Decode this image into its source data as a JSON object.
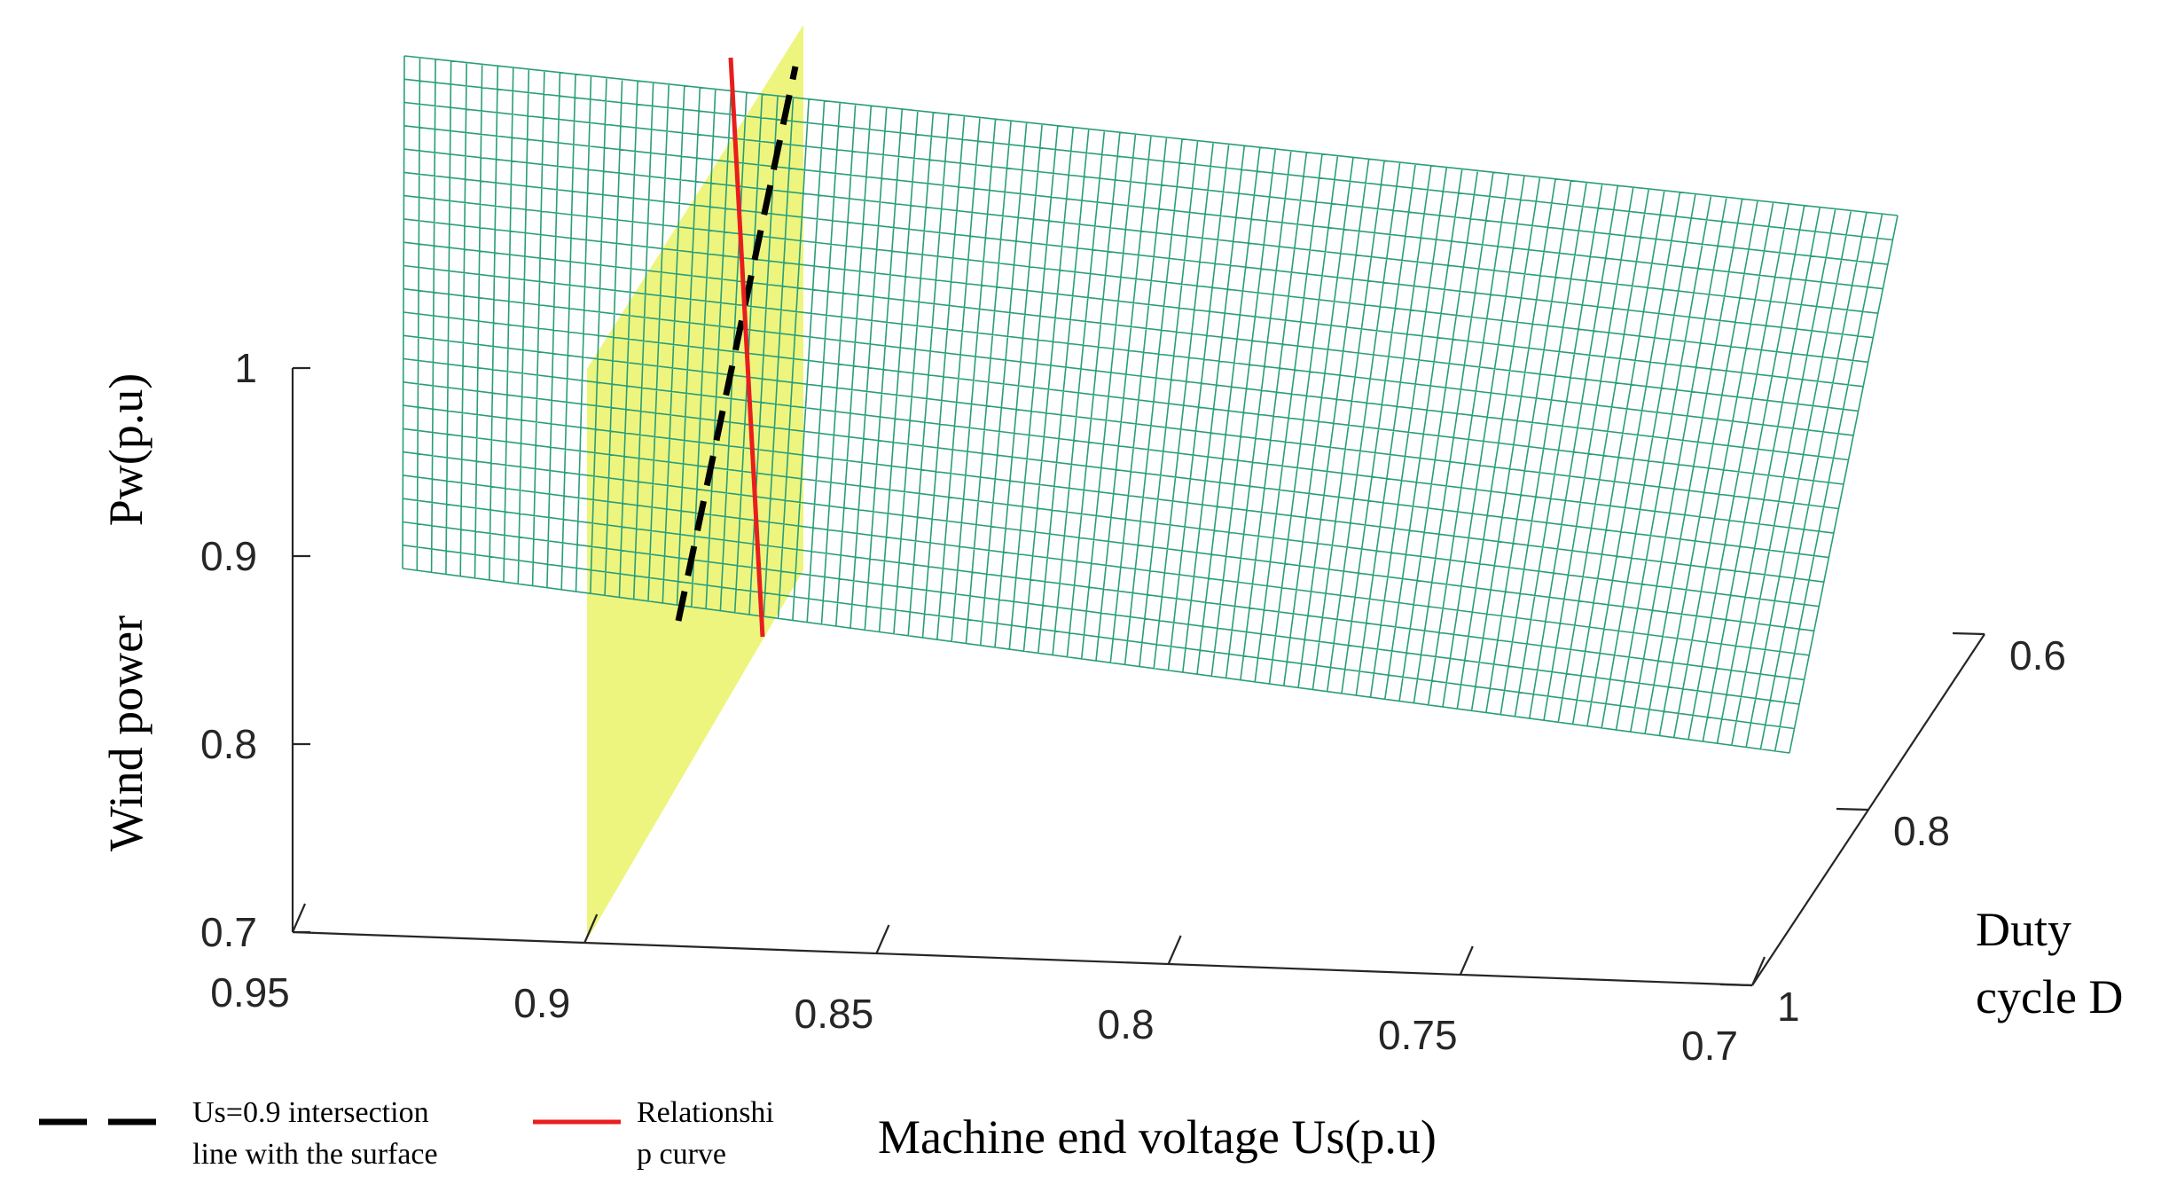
{
  "chart_data": {
    "type": "surface3d",
    "title": "",
    "xlabel": "Machine end voltage Us(p.u)",
    "ylabel_lines": [
      "Duty",
      "cycle D"
    ],
    "zlabel_lines": [
      "Wind power",
      "Pw(p.u)"
    ],
    "x_ticks": [
      "0.95",
      "0.9",
      "0.85",
      "0.8",
      "0.75",
      "0.7"
    ],
    "y_ticks": [
      "0.6",
      "0.8",
      "1"
    ],
    "z_ticks": [
      "1",
      "0.9",
      "0.8",
      "0.7"
    ],
    "xlim": [
      0.95,
      0.7
    ],
    "ylim": [
      0.6,
      1.0
    ],
    "zlim": [
      0.7,
      1.0
    ],
    "surface": {
      "name": "Pw(Us, D) surface",
      "color": "#2a9d7a",
      "grid": {
        "cols": 96,
        "rows": 22
      }
    },
    "plane": {
      "name": "Us=0.9 plane",
      "us_value": 0.9,
      "color": "#e8f25a"
    },
    "series": [
      {
        "name": "Us=0.9 intersection line with the surface",
        "style": "dashed",
        "color": "#000000"
      },
      {
        "name": "Relationship curve",
        "style": "solid",
        "color": "#e81e1e"
      }
    ],
    "legend": {
      "placement": "bottom-left",
      "entries": [
        {
          "label_lines": [
            "Us=0.9 intersection",
            "line with the surface"
          ],
          "style": "dashed",
          "color": "#000000"
        },
        {
          "label_lines": [
            "Relationshi",
            "p curve"
          ],
          "style": "solid",
          "color": "#e81e1e"
        }
      ]
    }
  }
}
